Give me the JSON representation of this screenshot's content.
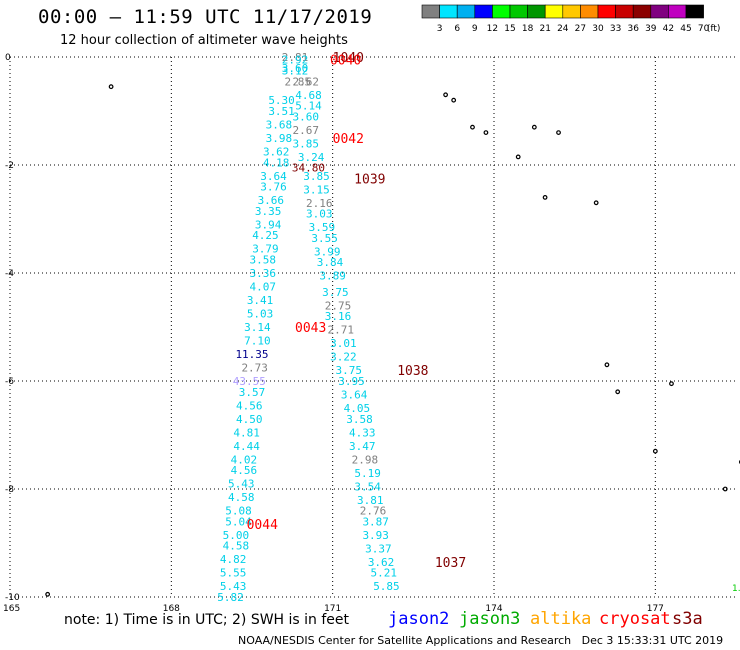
{
  "header": {
    "title": "00:00 – 11:59 UTC 11/17/2019",
    "subtitle": "12 hour collection of altimeter wave heights"
  },
  "color_scale": {
    "unit_label": "(ft)",
    "bins": [
      {
        "label": "3",
        "color": "#808080"
      },
      {
        "label": "6",
        "color": "#00e5ff"
      },
      {
        "label": "9",
        "color": "#00b0f0"
      },
      {
        "label": "12",
        "color": "#0000ff"
      },
      {
        "label": "15",
        "color": "#00ff00"
      },
      {
        "label": "18",
        "color": "#00c800"
      },
      {
        "label": "21",
        "color": "#009600"
      },
      {
        "label": "24",
        "color": "#ffff00"
      },
      {
        "label": "27",
        "color": "#ffc800"
      },
      {
        "label": "30",
        "color": "#ff8c00"
      },
      {
        "label": "33",
        "color": "#ff0000"
      },
      {
        "label": "36",
        "color": "#c80000"
      },
      {
        "label": "39",
        "color": "#8b0000"
      },
      {
        "label": "42",
        "color": "#800080"
      },
      {
        "label": "45",
        "color": "#c000c0"
      },
      {
        "label": "70",
        "color": "#000000"
      }
    ]
  },
  "map": {
    "lon_ticks": [
      "165",
      "168",
      "171",
      "174",
      "177"
    ],
    "lat_ticks": [
      "0",
      "-2",
      "-4",
      "-6",
      "-8",
      "-10"
    ],
    "corner_text": "1."
  },
  "colors": {
    "jason2": "#0000ff",
    "jason3": "#00aa00",
    "altika": "#ffa500",
    "cryosat": "#ff0000",
    "s3a": "#800000",
    "swh_cyan": "#00d0e8",
    "swh_gray": "#707070",
    "swh_darkblue": "#00008b",
    "swh_lavender": "#b0a0ff"
  },
  "time_labels": [
    {
      "text": "1040",
      "lon": 171.0,
      "lat": 0.0,
      "color": "#800000"
    },
    {
      "text": "0040",
      "lon": 170.95,
      "lat": -0.05,
      "color": "#ff0000"
    },
    {
      "text": "0042",
      "lon": 171.0,
      "lat": -1.5,
      "color": "#ff0000"
    },
    {
      "text": "1039",
      "lon": 171.4,
      "lat": -2.25,
      "color": "#800000"
    },
    {
      "text": "0043",
      "lon": 170.3,
      "lat": -5.0,
      "color": "#ff0000"
    },
    {
      "text": "1038",
      "lon": 172.2,
      "lat": -5.8,
      "color": "#800000"
    },
    {
      "text": "0044",
      "lon": 169.4,
      "lat": -8.65,
      "color": "#ff0000"
    },
    {
      "text": "1037",
      "lon": 172.9,
      "lat": -9.35,
      "color": "#800000"
    }
  ],
  "swh_values": [
    {
      "text": "2.81",
      "lon": 170.3,
      "lat": 0.0,
      "color": "#808080"
    },
    {
      "text": "2.92",
      "lon": 170.3,
      "lat": -0.05,
      "color": "#00d0e8"
    },
    {
      "text": "3.60",
      "lon": 170.3,
      "lat": -0.2,
      "color": "#00d0e8"
    },
    {
      "text": "3.12",
      "lon": 170.3,
      "lat": -0.25,
      "color": "#00d0e8"
    },
    {
      "text": "2.62",
      "lon": 170.5,
      "lat": -0.45,
      "color": "#808080"
    },
    {
      "text": "2.85",
      "lon": 170.35,
      "lat": -0.45,
      "color": "#808080"
    },
    {
      "text": "4.68",
      "lon": 170.55,
      "lat": -0.7,
      "color": "#00d0e8"
    },
    {
      "text": "5.30",
      "lon": 170.05,
      "lat": -0.8,
      "color": "#00d0e8"
    },
    {
      "text": "5.14",
      "lon": 170.55,
      "lat": -0.9,
      "color": "#00d0e8"
    },
    {
      "text": "3.51",
      "lon": 170.05,
      "lat": -1.0,
      "color": "#00d0e8"
    },
    {
      "text": "3.60",
      "lon": 170.5,
      "lat": -1.1,
      "color": "#00d0e8"
    },
    {
      "text": "3.68",
      "lon": 170.0,
      "lat": -1.25,
      "color": "#00d0e8"
    },
    {
      "text": "2.67",
      "lon": 170.5,
      "lat": -1.35,
      "color": "#808080"
    },
    {
      "text": "3.98",
      "lon": 170.0,
      "lat": -1.5,
      "color": "#00d0e8"
    },
    {
      "text": "3.85",
      "lon": 170.5,
      "lat": -1.6,
      "color": "#00d0e8"
    },
    {
      "text": "3.62",
      "lon": 169.95,
      "lat": -1.75,
      "color": "#00d0e8"
    },
    {
      "text": "3.24",
      "lon": 170.6,
      "lat": -1.85,
      "color": "#00d0e8"
    },
    {
      "text": "4.18",
      "lon": 169.95,
      "lat": -1.95,
      "color": "#00d0e8"
    },
    {
      "text": "34.80",
      "lon": 170.55,
      "lat": -2.05,
      "color": "#800000"
    },
    {
      "text": "3.64",
      "lon": 169.9,
      "lat": -2.2,
      "color": "#00d0e8"
    },
    {
      "text": "3.85",
      "lon": 170.7,
      "lat": -2.2,
      "color": "#00d0e8"
    },
    {
      "text": "3.76",
      "lon": 169.9,
      "lat": -2.4,
      "color": "#00d0e8"
    },
    {
      "text": "3.15",
      "lon": 170.7,
      "lat": -2.45,
      "color": "#00d0e8"
    },
    {
      "text": "3.66",
      "lon": 169.85,
      "lat": -2.65,
      "color": "#00d0e8"
    },
    {
      "text": "2.16",
      "lon": 170.75,
      "lat": -2.7,
      "color": "#808080"
    },
    {
      "text": "3.35",
      "lon": 169.8,
      "lat": -2.85,
      "color": "#00d0e8"
    },
    {
      "text": "3.03",
      "lon": 170.75,
      "lat": -2.9,
      "color": "#00d0e8"
    },
    {
      "text": "3.94",
      "lon": 169.8,
      "lat": -3.1,
      "color": "#00d0e8"
    },
    {
      "text": "3.59",
      "lon": 170.8,
      "lat": -3.15,
      "color": "#00d0e8"
    },
    {
      "text": "4.25",
      "lon": 169.75,
      "lat": -3.3,
      "color": "#00d0e8"
    },
    {
      "text": "3.55",
      "lon": 170.85,
      "lat": -3.35,
      "color": "#00d0e8"
    },
    {
      "text": "3.79",
      "lon": 169.75,
      "lat": -3.55,
      "color": "#00d0e8"
    },
    {
      "text": "3.99",
      "lon": 170.9,
      "lat": -3.6,
      "color": "#00d0e8"
    },
    {
      "text": "3.58",
      "lon": 169.7,
      "lat": -3.75,
      "color": "#00d0e8"
    },
    {
      "text": "3.84",
      "lon": 170.95,
      "lat": -3.8,
      "color": "#00d0e8"
    },
    {
      "text": "3.36",
      "lon": 169.7,
      "lat": -4.0,
      "color": "#00d0e8"
    },
    {
      "text": "3.89",
      "lon": 171.0,
      "lat": -4.05,
      "color": "#00d0e8"
    },
    {
      "text": "4.07",
      "lon": 169.7,
      "lat": -4.25,
      "color": "#00d0e8"
    },
    {
      "text": "3.75",
      "lon": 171.05,
      "lat": -4.35,
      "color": "#00d0e8"
    },
    {
      "text": "3.41",
      "lon": 169.65,
      "lat": -4.5,
      "color": "#00d0e8"
    },
    {
      "text": "2.75",
      "lon": 171.1,
      "lat": -4.6,
      "color": "#808080"
    },
    {
      "text": "5.03",
      "lon": 169.65,
      "lat": -4.75,
      "color": "#00d0e8"
    },
    {
      "text": "3.16",
      "lon": 171.1,
      "lat": -4.8,
      "color": "#00d0e8"
    },
    {
      "text": "3.14",
      "lon": 169.6,
      "lat": -5.0,
      "color": "#00d0e8"
    },
    {
      "text": "2.71",
      "lon": 171.15,
      "lat": -5.05,
      "color": "#808080"
    },
    {
      "text": "7.10",
      "lon": 169.6,
      "lat": -5.25,
      "color": "#00d0e8"
    },
    {
      "text": "3.01",
      "lon": 171.2,
      "lat": -5.3,
      "color": "#00d0e8"
    },
    {
      "text": "11.35",
      "lon": 169.5,
      "lat": -5.5,
      "color": "#00008b"
    },
    {
      "text": "3.22",
      "lon": 171.2,
      "lat": -5.55,
      "color": "#00d0e8"
    },
    {
      "text": "2.73",
      "lon": 169.55,
      "lat": -5.75,
      "color": "#808080"
    },
    {
      "text": "3.75",
      "lon": 171.3,
      "lat": -5.8,
      "color": "#00d0e8"
    },
    {
      "text": "43.55",
      "lon": 169.45,
      "lat": -6.0,
      "color": "#b0a0ff"
    },
    {
      "text": "3.95",
      "lon": 171.35,
      "lat": -6.0,
      "color": "#00d0e8"
    },
    {
      "text": "3.57",
      "lon": 169.5,
      "lat": -6.2,
      "color": "#00d0e8"
    },
    {
      "text": "3.64",
      "lon": 171.4,
      "lat": -6.25,
      "color": "#00d0e8"
    },
    {
      "text": "4.56",
      "lon": 169.45,
      "lat": -6.45,
      "color": "#00d0e8"
    },
    {
      "text": "4.05",
      "lon": 171.45,
      "lat": -6.5,
      "color": "#00d0e8"
    },
    {
      "text": "4.50",
      "lon": 169.45,
      "lat": -6.7,
      "color": "#00d0e8"
    },
    {
      "text": "3.58",
      "lon": 171.5,
      "lat": -6.7,
      "color": "#00d0e8"
    },
    {
      "text": "4.81",
      "lon": 169.4,
      "lat": -6.95,
      "color": "#00d0e8"
    },
    {
      "text": "4.33",
      "lon": 171.55,
      "lat": -6.95,
      "color": "#00d0e8"
    },
    {
      "text": "4.44",
      "lon": 169.4,
      "lat": -7.2,
      "color": "#00d0e8"
    },
    {
      "text": "3.47",
      "lon": 171.55,
      "lat": -7.2,
      "color": "#00d0e8"
    },
    {
      "text": "4.02",
      "lon": 169.35,
      "lat": -7.45,
      "color": "#00d0e8"
    },
    {
      "text": "2.98",
      "lon": 171.6,
      "lat": -7.45,
      "color": "#808080"
    },
    {
      "text": "4.56",
      "lon": 169.35,
      "lat": -7.65,
      "color": "#00d0e8"
    },
    {
      "text": "5.19",
      "lon": 171.65,
      "lat": -7.7,
      "color": "#00d0e8"
    },
    {
      "text": "5.43",
      "lon": 169.3,
      "lat": -7.9,
      "color": "#00d0e8"
    },
    {
      "text": "3.54",
      "lon": 171.65,
      "lat": -7.95,
      "color": "#00d0e8"
    },
    {
      "text": "4.58",
      "lon": 169.3,
      "lat": -8.15,
      "color": "#00d0e8"
    },
    {
      "text": "3.81",
      "lon": 171.7,
      "lat": -8.2,
      "color": "#00d0e8"
    },
    {
      "text": "5.08",
      "lon": 169.25,
      "lat": -8.4,
      "color": "#00d0e8"
    },
    {
      "text": "2.76",
      "lon": 171.75,
      "lat": -8.4,
      "color": "#808080"
    },
    {
      "text": "5.04",
      "lon": 169.25,
      "lat": -8.6,
      "color": "#00d0e8"
    },
    {
      "text": "3.87",
      "lon": 171.8,
      "lat": -8.6,
      "color": "#00d0e8"
    },
    {
      "text": "5.00",
      "lon": 169.2,
      "lat": -8.85,
      "color": "#00d0e8"
    },
    {
      "text": "3.93",
      "lon": 171.8,
      "lat": -8.85,
      "color": "#00d0e8"
    },
    {
      "text": "4.58",
      "lon": 169.2,
      "lat": -9.05,
      "color": "#00d0e8"
    },
    {
      "text": "3.37",
      "lon": 171.85,
      "lat": -9.1,
      "color": "#00d0e8"
    },
    {
      "text": "4.82",
      "lon": 169.15,
      "lat": -9.3,
      "color": "#00d0e8"
    },
    {
      "text": "3.62",
      "lon": 171.9,
      "lat": -9.35,
      "color": "#00d0e8"
    },
    {
      "text": "5.55",
      "lon": 169.15,
      "lat": -9.55,
      "color": "#00d0e8"
    },
    {
      "text": "5.21",
      "lon": 171.95,
      "lat": -9.55,
      "color": "#00d0e8"
    },
    {
      "text": "5.43",
      "lon": 169.15,
      "lat": -9.8,
      "color": "#00d0e8"
    },
    {
      "text": "5.85",
      "lon": 172.0,
      "lat": -9.8,
      "color": "#00d0e8"
    },
    {
      "text": "5.82",
      "lon": 169.1,
      "lat": -10.0,
      "color": "#00d0e8"
    }
  ],
  "islands": [
    {
      "lon": 166.88,
      "lat": -0.55
    },
    {
      "lon": 173.1,
      "lat": -0.7
    },
    {
      "lon": 173.25,
      "lat": -0.8
    },
    {
      "lon": 173.6,
      "lat": -1.3
    },
    {
      "lon": 173.85,
      "lat": -1.4
    },
    {
      "lon": 174.75,
      "lat": -1.3
    },
    {
      "lon": 175.2,
      "lat": -1.4
    },
    {
      "lon": 174.45,
      "lat": -1.85
    },
    {
      "lon": 174.95,
      "lat": -2.6
    },
    {
      "lon": 175.9,
      "lat": -2.7
    },
    {
      "lon": 176.1,
      "lat": -5.7
    },
    {
      "lon": 176.3,
      "lat": -6.2
    },
    {
      "lon": 177.3,
      "lat": -6.05
    },
    {
      "lon": 177.0,
      "lat": -7.3
    },
    {
      "lon": 178.6,
      "lat": -7.5
    },
    {
      "lon": 178.3,
      "lat": -8.0
    },
    {
      "lon": 165.7,
      "lat": -9.95
    }
  ],
  "legend": {
    "note": "note: 1) Time is in UTC; 2) SWH is in feet",
    "jason2": "jason2",
    "jason3": "jason3",
    "altika": "altika",
    "cryosat": "cryosat",
    "s3a": "s3a"
  },
  "footer": {
    "credit": "NOAA/NESDIS Center for Satellite Applications and Research",
    "date": "Dec  3 15:33:31 UTC 2019"
  }
}
